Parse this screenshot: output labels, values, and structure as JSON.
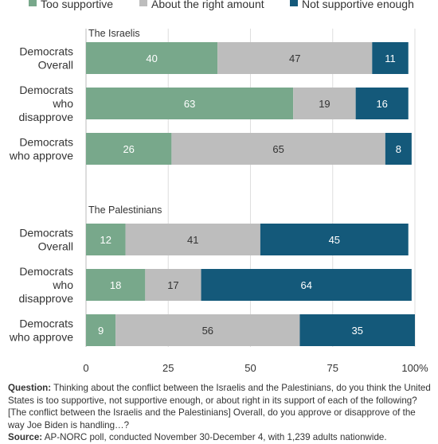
{
  "chart_data": {
    "type": "bar",
    "orientation": "horizontal",
    "stacked": true,
    "series_names": [
      "Too supportive",
      "About the right amount",
      "Not supportive enough"
    ],
    "colors": [
      "#78a88b",
      "#bdbdbd",
      "#14597a"
    ],
    "label_colors": [
      "#ffffff",
      "#333333",
      "#ffffff"
    ],
    "legend_position": "top",
    "xlim": [
      0,
      100
    ],
    "x_ticks": [
      "0",
      "25",
      "50",
      "75",
      "100%"
    ],
    "x_tick_values": [
      0,
      25,
      50,
      75,
      100
    ],
    "grid": true,
    "groups": [
      {
        "title": "The Israelis",
        "rows": [
          {
            "label_lines": [
              "Democrats",
              "Overall"
            ],
            "values": [
              40,
              47,
              11
            ]
          },
          {
            "label_lines": [
              "Democrats",
              "who",
              "disapprove"
            ],
            "values": [
              63,
              19,
              16
            ]
          },
          {
            "label_lines": [
              "Democrats",
              "who approve"
            ],
            "values": [
              26,
              65,
              8
            ]
          }
        ]
      },
      {
        "title": "The Palestinians",
        "rows": [
          {
            "label_lines": [
              "Democrats",
              "Overall"
            ],
            "values": [
              12,
              41,
              45
            ]
          },
          {
            "label_lines": [
              "Democrats",
              "who",
              "disapprove"
            ],
            "values": [
              18,
              17,
              64
            ]
          },
          {
            "label_lines": [
              "Democrats",
              "who approve"
            ],
            "values": [
              9,
              56,
              35
            ]
          }
        ]
      }
    ]
  },
  "notes": {
    "question_label": "Question:",
    "question_text": "Thinking about the conflict between the Israelis and the Palestinians, do you think the United States is too supportive, not supportive enough, or about right in its support of each of the following? [The conflict between the Israelis and the Palestinians] Overall, do you approve or disapprove of the way Joe Biden is handling…?",
    "source_label": "Source:",
    "source_text": "AP-NORC poll, conducted November 30-December 4, with 1,239 adults nationwide."
  }
}
